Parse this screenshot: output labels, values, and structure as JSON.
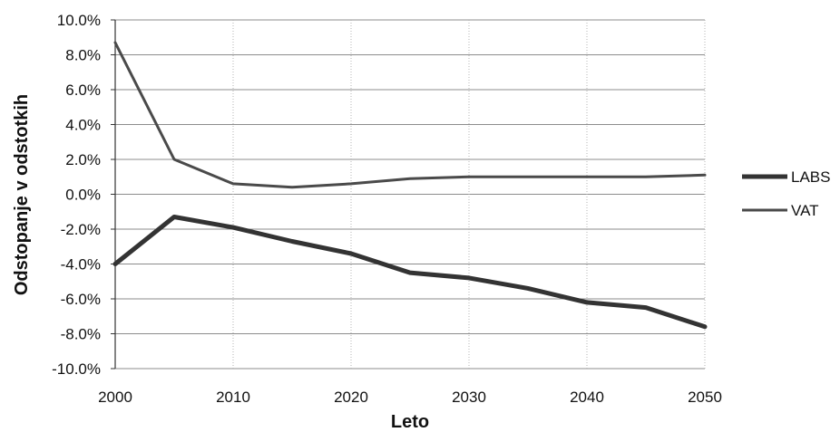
{
  "chart_data": {
    "type": "line",
    "title": "",
    "xlabel": "Leto",
    "ylabel": "Odstopanje v odstotkih",
    "x": [
      2000,
      2005,
      2010,
      2015,
      2020,
      2025,
      2030,
      2035,
      2040,
      2045,
      2050
    ],
    "xlim": [
      2000,
      2050
    ],
    "ylim": [
      -10,
      10
    ],
    "x_ticks": [
      2000,
      2010,
      2020,
      2030,
      2040,
      2050
    ],
    "x_tick_labels": [
      "2000",
      "2010",
      "2020",
      "2030",
      "2040",
      "2050"
    ],
    "y_ticks": [
      10,
      8,
      6,
      4,
      2,
      0,
      -2,
      -4,
      -6,
      -8,
      -10
    ],
    "y_tick_labels": [
      "10.0%",
      "8.0%",
      "6.0%",
      "4.0%",
      "2.0%",
      "0.0%",
      "-2.0%",
      "-4.0%",
      "-6.0%",
      "-8.0%",
      "-10.0%"
    ],
    "grid": {
      "horizontal": true,
      "vertical": true
    },
    "legend_position": "right",
    "series": [
      {
        "name": "LABS",
        "color": "#333333",
        "values": [
          -4.0,
          -1.3,
          -1.9,
          -2.7,
          -3.4,
          -4.5,
          -4.8,
          -5.4,
          -6.2,
          -6.5,
          -7.6
        ]
      },
      {
        "name": "VAT",
        "color": "#4a4a4a",
        "values": [
          8.7,
          2.0,
          0.6,
          0.4,
          0.6,
          0.9,
          1.0,
          1.0,
          1.0,
          1.0,
          1.1
        ]
      }
    ]
  }
}
